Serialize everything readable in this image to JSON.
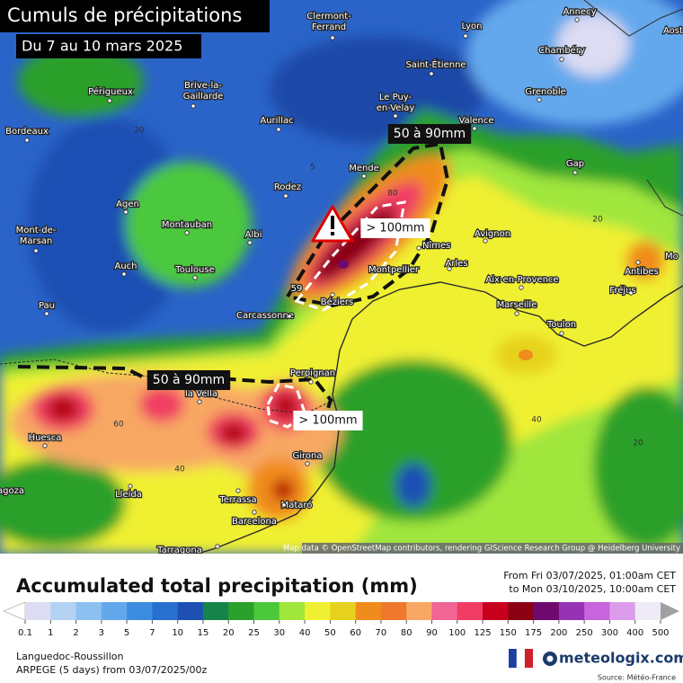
{
  "header": {
    "title": "Cumuls de précipitations",
    "subtitle": "Du 7 au 10 mars 2025"
  },
  "callouts": [
    "50 à 90mm",
    "> 100mm",
    "50 à 90mm",
    "> 100mm"
  ],
  "cities": [
    [
      "Clermont-",
      "Ferrand"
    ],
    [
      "Lyon"
    ],
    [
      "Annecy"
    ],
    [
      "Aost"
    ],
    [
      "Chambéry"
    ],
    [
      "Saint-Étienne"
    ],
    [
      "Grenoble"
    ],
    [
      "Périgueux"
    ],
    [
      "Brive-la-",
      "Gaillarde"
    ],
    [
      "Le Puy-",
      "en-Velay"
    ],
    [
      "Valence"
    ],
    [
      "Bordeaux"
    ],
    [
      "Aurillac"
    ],
    [
      "Gap"
    ],
    [
      "Mende"
    ],
    [
      "Rodez"
    ],
    [
      "Agen"
    ],
    [
      "Montauban"
    ],
    [
      "Albi"
    ],
    [
      "Nîmes"
    ],
    [
      "Avignon"
    ],
    [
      "Mont-de-",
      "Marsan"
    ],
    [
      "Auch"
    ],
    [
      "Toulouse"
    ],
    [
      "Montpellier"
    ],
    [
      "Arles"
    ],
    [
      "Mo"
    ],
    [
      "Antibes"
    ],
    [
      "Aix-en-Provence"
    ],
    [
      "Fréjus"
    ],
    [
      "Pau"
    ],
    [
      "Carcassonne"
    ],
    [
      "Béziers"
    ],
    [
      "Marseille"
    ],
    [
      "Toulon"
    ],
    [
      "Perpignan"
    ],
    [
      "la Vella"
    ],
    [
      "Huesca"
    ],
    [
      "Girona"
    ],
    [
      "Lleida"
    ],
    [
      "Terrassa"
    ],
    [
      "Mataró"
    ],
    [
      "Barcelona"
    ],
    [
      "Tarragona"
    ],
    [
      "agoza"
    ]
  ],
  "contour_labels": [
    20,
    5,
    80,
    59,
    60,
    40,
    40,
    20,
    20
  ],
  "attribution": "Map data © OpenStreetMap contributors, rendering GIScience Research Group @ Heidelberg University",
  "legend": {
    "title": "Accumulated total precipitation (mm)",
    "period": [
      "From Fri 03/07/2025, 01:00am CET",
      "to Mon 03/10/2025, 10:00am CET"
    ],
    "ticks": [
      0.1,
      1,
      2,
      3,
      5,
      7,
      10,
      15,
      20,
      25,
      30,
      40,
      50,
      60,
      70,
      80,
      90,
      100,
      125,
      150,
      175,
      200,
      250,
      300,
      400,
      500
    ],
    "under_color": "#ffffff",
    "over_color": "#a0a0a0",
    "colors": [
      "#dcdcf2",
      "#b4d2f4",
      "#8cc0f0",
      "#64a8ec",
      "#3c8ce0",
      "#2870d0",
      "#1e50b4",
      "#16844a",
      "#2ca02c",
      "#4cc83c",
      "#a0e63c",
      "#f0f032",
      "#e6d21e",
      "#f08c1e",
      "#f0782c",
      "#f8a864",
      "#f06496",
      "#f03c64",
      "#c8001e",
      "#8c0014",
      "#6e0a6e",
      "#9632b4",
      "#c864dc",
      "#dc9cec",
      "#eeeaf6"
    ]
  },
  "footer": {
    "region": "Languedoc-Roussillon",
    "model": "ARPEGE (5 days) from 03/07/2025/00z",
    "brand": "meteologix.com",
    "source": "Source: Météo-France"
  }
}
